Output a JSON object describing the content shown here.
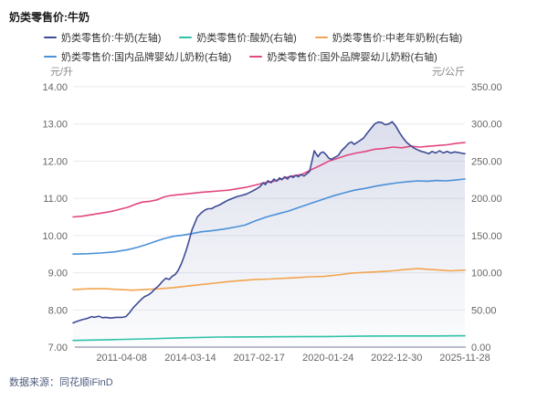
{
  "header": {
    "title": "奶类零售价:牛奶"
  },
  "legend": [
    {
      "label": "奶类零售价:牛奶(左轴)"
    },
    {
      "label": "奶类零售价:酸奶(右轴)"
    },
    {
      "label": "奶类零售价:中老年奶粉(右轴)"
    },
    {
      "label": "奶类零售价:国内品牌婴幼儿奶粉(右轴)"
    },
    {
      "label": "奶类零售价:国外品牌婴幼儿奶粉(右轴)"
    }
  ],
  "footer": {
    "source": "数据来源：同花顺iFinD"
  },
  "colors": {
    "milk": "#3e4b96",
    "yogurt": "#2fc2a7",
    "middle_aged_powder": "#f2a44e",
    "domestic_infant_powder": "#4a90d8",
    "foreign_infant_powder": "#e2457f",
    "grid": "#e9eaf1",
    "axis_line": "#b9bdc9",
    "tick_text": "#666666",
    "area_fill_top": "rgba(80,95,160,0.20)",
    "area_fill_bottom": "rgba(80,95,160,0.02)"
  },
  "chart_data": {
    "type": "line",
    "title": "奶类零售价:牛奶",
    "x_range": [
      2009.2,
      2025.9
    ],
    "x_ticks": [
      {
        "label": "2011-04-08",
        "year": 2011.27
      },
      {
        "label": "2014-03-14",
        "year": 2014.2
      },
      {
        "label": "2017-02-17",
        "year": 2017.13
      },
      {
        "label": "2020-01-24",
        "year": 2020.07
      },
      {
        "label": "2022-12-30",
        "year": 2022.99
      },
      {
        "label": "2025-11-28",
        "year": 2025.9
      }
    ],
    "left_axis": {
      "unit": "元/升",
      "range": [
        7,
        14
      ],
      "ticks": [
        "14.00",
        "13.00",
        "12.00",
        "11.00",
        "10.00",
        "9.00",
        "8.00",
        "7.00"
      ]
    },
    "right_axis": {
      "unit": "元/公斤",
      "range": [
        0,
        350
      ],
      "ticks": [
        "350.00",
        "300.00",
        "250.00",
        "200.00",
        "150.00",
        "100.00",
        "50.00",
        "0.00"
      ]
    },
    "grid": true,
    "legend_position": "top",
    "series": [
      {
        "name": "奶类零售价:牛奶(左轴)",
        "key": "milk",
        "axis": "left",
        "area": true,
        "points": [
          [
            2009.2,
            7.65
          ],
          [
            2009.4,
            7.7
          ],
          [
            2009.6,
            7.74
          ],
          [
            2009.8,
            7.77
          ],
          [
            2010.0,
            7.82
          ],
          [
            2010.1,
            7.8
          ],
          [
            2010.3,
            7.83
          ],
          [
            2010.45,
            7.79
          ],
          [
            2010.6,
            7.8
          ],
          [
            2010.8,
            7.78
          ],
          [
            2011.05,
            7.8
          ],
          [
            2011.3,
            7.8
          ],
          [
            2011.45,
            7.82
          ],
          [
            2011.6,
            7.92
          ],
          [
            2011.75,
            8.05
          ],
          [
            2011.9,
            8.15
          ],
          [
            2012.1,
            8.28
          ],
          [
            2012.25,
            8.36
          ],
          [
            2012.4,
            8.4
          ],
          [
            2012.55,
            8.47
          ],
          [
            2012.7,
            8.57
          ],
          [
            2012.85,
            8.65
          ],
          [
            2013.0,
            8.76
          ],
          [
            2013.15,
            8.85
          ],
          [
            2013.3,
            8.82
          ],
          [
            2013.42,
            8.9
          ],
          [
            2013.55,
            8.95
          ],
          [
            2013.67,
            9.05
          ],
          [
            2013.8,
            9.22
          ],
          [
            2013.92,
            9.42
          ],
          [
            2014.03,
            9.62
          ],
          [
            2014.15,
            9.88
          ],
          [
            2014.27,
            10.15
          ],
          [
            2014.4,
            10.35
          ],
          [
            2014.5,
            10.5
          ],
          [
            2014.65,
            10.6
          ],
          [
            2014.8,
            10.68
          ],
          [
            2014.95,
            10.72
          ],
          [
            2015.1,
            10.72
          ],
          [
            2015.27,
            10.78
          ],
          [
            2015.43,
            10.82
          ],
          [
            2015.6,
            10.88
          ],
          [
            2015.8,
            10.95
          ],
          [
            2016.0,
            11.0
          ],
          [
            2016.2,
            11.05
          ],
          [
            2016.4,
            11.08
          ],
          [
            2016.6,
            11.12
          ],
          [
            2016.8,
            11.18
          ],
          [
            2017.0,
            11.25
          ],
          [
            2017.18,
            11.32
          ],
          [
            2017.3,
            11.42
          ],
          [
            2017.4,
            11.37
          ],
          [
            2017.5,
            11.47
          ],
          [
            2017.64,
            11.42
          ],
          [
            2017.76,
            11.52
          ],
          [
            2017.88,
            11.46
          ],
          [
            2018.0,
            11.55
          ],
          [
            2018.1,
            11.5
          ],
          [
            2018.22,
            11.58
          ],
          [
            2018.34,
            11.52
          ],
          [
            2018.46,
            11.6
          ],
          [
            2018.58,
            11.56
          ],
          [
            2018.7,
            11.62
          ],
          [
            2018.8,
            11.58
          ],
          [
            2018.92,
            11.64
          ],
          [
            2019.04,
            11.6
          ],
          [
            2019.16,
            11.66
          ],
          [
            2019.28,
            11.72
          ],
          [
            2019.4,
            12.05
          ],
          [
            2019.48,
            12.28
          ],
          [
            2019.56,
            12.2
          ],
          [
            2019.64,
            12.12
          ],
          [
            2019.75,
            12.22
          ],
          [
            2019.86,
            12.25
          ],
          [
            2019.98,
            12.18
          ],
          [
            2020.1,
            12.08
          ],
          [
            2020.22,
            12.05
          ],
          [
            2020.34,
            12.1
          ],
          [
            2020.5,
            12.15
          ],
          [
            2020.64,
            12.28
          ],
          [
            2020.8,
            12.38
          ],
          [
            2020.95,
            12.48
          ],
          [
            2021.07,
            12.52
          ],
          [
            2021.18,
            12.45
          ],
          [
            2021.3,
            12.5
          ],
          [
            2021.42,
            12.55
          ],
          [
            2021.58,
            12.62
          ],
          [
            2021.73,
            12.75
          ],
          [
            2021.9,
            12.88
          ],
          [
            2022.05,
            13.0
          ],
          [
            2022.2,
            13.05
          ],
          [
            2022.35,
            13.04
          ],
          [
            2022.5,
            12.98
          ],
          [
            2022.65,
            13.0
          ],
          [
            2022.8,
            13.06
          ],
          [
            2022.95,
            12.95
          ],
          [
            2023.1,
            12.78
          ],
          [
            2023.27,
            12.62
          ],
          [
            2023.43,
            12.5
          ],
          [
            2023.58,
            12.42
          ],
          [
            2023.74,
            12.35
          ],
          [
            2023.9,
            12.3
          ],
          [
            2024.05,
            12.26
          ],
          [
            2024.2,
            12.24
          ],
          [
            2024.36,
            12.2
          ],
          [
            2024.5,
            12.26
          ],
          [
            2024.66,
            12.22
          ],
          [
            2024.82,
            12.28
          ],
          [
            2024.98,
            12.22
          ],
          [
            2025.14,
            12.26
          ],
          [
            2025.3,
            12.22
          ],
          [
            2025.46,
            12.25
          ],
          [
            2025.65,
            12.23
          ],
          [
            2025.9,
            12.2
          ]
        ]
      },
      {
        "name": "奶类零售价:酸奶(右轴)",
        "key": "yogurt",
        "axis": "right",
        "area": false,
        "points": [
          [
            2009.2,
            9
          ],
          [
            2010.76,
            10
          ],
          [
            2012.3,
            11
          ],
          [
            2013.87,
            12.5
          ],
          [
            2015.43,
            13.5
          ],
          [
            2016.99,
            13.8
          ],
          [
            2018.54,
            14
          ],
          [
            2020.1,
            14.2
          ],
          [
            2021.66,
            14.8
          ],
          [
            2023.2,
            15
          ],
          [
            2024.57,
            15
          ],
          [
            2025.9,
            15.2
          ]
        ]
      },
      {
        "name": "奶类零售价:中老年奶粉(右轴)",
        "key": "middle_aged_powder",
        "axis": "right",
        "area": false,
        "points": [
          [
            2009.2,
            77.5
          ],
          [
            2009.98,
            78.5
          ],
          [
            2010.56,
            78.5
          ],
          [
            2011.15,
            77.5
          ],
          [
            2011.73,
            76.5
          ],
          [
            2012.3,
            77.5
          ],
          [
            2012.9,
            78.5
          ],
          [
            2013.48,
            80
          ],
          [
            2014.07,
            82
          ],
          [
            2014.65,
            84
          ],
          [
            2015.23,
            86
          ],
          [
            2015.82,
            88
          ],
          [
            2016.4,
            89.5
          ],
          [
            2016.99,
            91
          ],
          [
            2017.57,
            91.5
          ],
          [
            2018.15,
            92.5
          ],
          [
            2018.74,
            93.5
          ],
          [
            2019.32,
            94.5
          ],
          [
            2019.9,
            95
          ],
          [
            2020.49,
            97
          ],
          [
            2021.07,
            99.5
          ],
          [
            2021.66,
            100.5
          ],
          [
            2022.24,
            101.5
          ],
          [
            2022.82,
            102.5
          ],
          [
            2023.41,
            104.5
          ],
          [
            2023.91,
            105.5
          ],
          [
            2024.38,
            104.5
          ],
          [
            2024.84,
            103.5
          ],
          [
            2025.31,
            102.5
          ],
          [
            2025.9,
            103.5
          ]
        ]
      },
      {
        "name": "奶类零售价:国内品牌婴幼儿奶粉(右轴)",
        "key": "domestic_infant_powder",
        "axis": "right",
        "area": false,
        "points": [
          [
            2009.2,
            125
          ],
          [
            2009.78,
            125.5
          ],
          [
            2010.37,
            126.5
          ],
          [
            2010.95,
            128
          ],
          [
            2011.54,
            131
          ],
          [
            2011.92,
            134
          ],
          [
            2012.3,
            137.5
          ],
          [
            2012.7,
            142
          ],
          [
            2013.09,
            146
          ],
          [
            2013.48,
            149
          ],
          [
            2013.87,
            150.5
          ],
          [
            2014.26,
            152.5
          ],
          [
            2014.65,
            155
          ],
          [
            2015.12,
            156.5
          ],
          [
            2015.59,
            158.5
          ],
          [
            2016.05,
            161
          ],
          [
            2016.52,
            164
          ],
          [
            2016.99,
            170
          ],
          [
            2017.45,
            175
          ],
          [
            2017.92,
            179
          ],
          [
            2018.39,
            183
          ],
          [
            2018.85,
            188
          ],
          [
            2019.32,
            193
          ],
          [
            2019.79,
            198
          ],
          [
            2020.25,
            203
          ],
          [
            2020.72,
            207
          ],
          [
            2021.19,
            211
          ],
          [
            2021.66,
            213.5
          ],
          [
            2022.12,
            216.5
          ],
          [
            2022.59,
            219
          ],
          [
            2023.06,
            221
          ],
          [
            2023.52,
            222.5
          ],
          [
            2023.91,
            223.5
          ],
          [
            2024.3,
            223
          ],
          [
            2024.69,
            224
          ],
          [
            2025.08,
            223.5
          ],
          [
            2025.46,
            224.5
          ],
          [
            2025.9,
            226
          ]
        ]
      },
      {
        "name": "奶类零售价:国外品牌婴幼儿奶粉(右轴)",
        "key": "foreign_infant_powder",
        "axis": "right",
        "area": false,
        "points": [
          [
            2009.2,
            175
          ],
          [
            2009.59,
            176
          ],
          [
            2009.98,
            178
          ],
          [
            2010.37,
            180
          ],
          [
            2010.76,
            182
          ],
          [
            2011.15,
            185
          ],
          [
            2011.54,
            188
          ],
          [
            2011.85,
            192
          ],
          [
            2012.16,
            195
          ],
          [
            2012.47,
            196
          ],
          [
            2012.78,
            198
          ],
          [
            2013.09,
            202
          ],
          [
            2013.4,
            204
          ],
          [
            2013.72,
            205
          ],
          [
            2014.03,
            206
          ],
          [
            2014.34,
            207
          ],
          [
            2014.65,
            208
          ],
          [
            2015.04,
            209
          ],
          [
            2015.43,
            210
          ],
          [
            2015.82,
            211
          ],
          [
            2016.21,
            213
          ],
          [
            2016.6,
            215
          ],
          [
            2016.99,
            218
          ],
          [
            2017.37,
            221
          ],
          [
            2017.76,
            223
          ],
          [
            2018.15,
            227
          ],
          [
            2018.54,
            230
          ],
          [
            2018.93,
            232
          ],
          [
            2019.32,
            238
          ],
          [
            2019.79,
            245
          ],
          [
            2020.1,
            250
          ],
          [
            2020.49,
            254
          ],
          [
            2020.88,
            258
          ],
          [
            2021.27,
            261
          ],
          [
            2021.66,
            263
          ],
          [
            2022.05,
            266
          ],
          [
            2022.44,
            267
          ],
          [
            2022.83,
            269
          ],
          [
            2023.21,
            268
          ],
          [
            2023.6,
            270
          ],
          [
            2023.99,
            269
          ],
          [
            2024.38,
            270
          ],
          [
            2024.75,
            271
          ],
          [
            2025.14,
            272
          ],
          [
            2025.53,
            274
          ],
          [
            2025.9,
            275
          ]
        ]
      }
    ]
  }
}
